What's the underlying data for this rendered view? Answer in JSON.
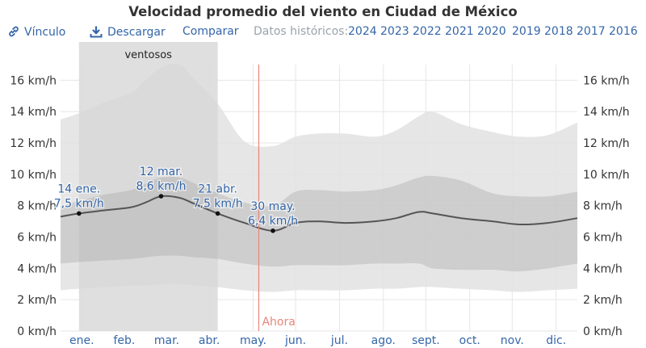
{
  "title": "Velocidad promedio del viento en Ciudad de México",
  "toolbar": {
    "link_label": "Vínculo",
    "link_icon": "link-icon",
    "download_label": "Descargar",
    "download_icon": "download-icon",
    "compare_label": "Comparar",
    "historical_label": "Datos históricos:",
    "years": [
      "2024",
      "2023",
      "2022",
      "2021",
      "2020",
      "2019",
      "2018",
      "2017",
      "2016"
    ]
  },
  "colors": {
    "link": "#3466a8",
    "now_line": "#e8857a",
    "band_outer": "#e2e2e2",
    "band_mid": "#c9c9c9",
    "band_inner": "#b3b3b3",
    "median_line": "#555555",
    "windy_shade": "#cfcfcf"
  },
  "chart_data": {
    "type": "area",
    "y_unit": "km/h",
    "ylim": [
      0,
      17
    ],
    "y_ticks": [
      {
        "value": 0,
        "label": "0 km/h"
      },
      {
        "value": 2,
        "label": "2 km/h"
      },
      {
        "value": 4,
        "label": "4 km/h"
      },
      {
        "value": 6,
        "label": "6 km/h"
      },
      {
        "value": 8,
        "label": "8 km/h"
      },
      {
        "value": 10,
        "label": "10 km/h"
      },
      {
        "value": 12,
        "label": "12 km/h"
      },
      {
        "value": 14,
        "label": "14 km/h"
      },
      {
        "value": 16,
        "label": "16 km/h"
      }
    ],
    "x_domain": [
      "2024-01-01",
      "2024-12-31"
    ],
    "months": [
      {
        "label": "ene.",
        "date": "2024-01-16"
      },
      {
        "label": "feb.",
        "date": "2024-02-15"
      },
      {
        "label": "mar.",
        "date": "2024-03-16"
      },
      {
        "label": "abr.",
        "date": "2024-04-15"
      },
      {
        "label": "may.",
        "date": "2024-05-16"
      },
      {
        "label": "jun.",
        "date": "2024-06-15"
      },
      {
        "label": "jul.",
        "date": "2024-07-16"
      },
      {
        "label": "ago.",
        "date": "2024-08-16"
      },
      {
        "label": "sept.",
        "date": "2024-09-15"
      },
      {
        "label": "oct.",
        "date": "2024-10-16"
      },
      {
        "label": "nov.",
        "date": "2024-11-15"
      },
      {
        "label": "dic.",
        "date": "2024-12-16"
      }
    ],
    "windy_season": {
      "label": "ventosos",
      "start": "2024-01-14",
      "end": "2024-04-21"
    },
    "now": {
      "label": "Ahora",
      "date": "2024-05-20"
    },
    "x": [
      "2024-01-01",
      "2024-01-14",
      "2024-02-01",
      "2024-02-20",
      "2024-03-01",
      "2024-03-12",
      "2024-03-25",
      "2024-04-05",
      "2024-04-21",
      "2024-05-10",
      "2024-05-30",
      "2024-06-15",
      "2024-07-01",
      "2024-07-20",
      "2024-08-10",
      "2024-08-25",
      "2024-09-10",
      "2024-09-20",
      "2024-10-10",
      "2024-11-01",
      "2024-11-20",
      "2024-12-10",
      "2024-12-31"
    ],
    "series": [
      {
        "name": "",
        "role": "p10",
        "values": [
          2.6,
          2.7,
          2.8,
          2.9,
          2.9,
          3.0,
          3.0,
          2.9,
          2.8,
          2.6,
          2.5,
          2.6,
          2.6,
          2.6,
          2.7,
          2.7,
          2.8,
          2.8,
          2.7,
          2.6,
          2.5,
          2.6,
          2.7
        ]
      },
      {
        "name": "",
        "role": "p25",
        "values": [
          4.3,
          4.4,
          4.5,
          4.6,
          4.7,
          4.8,
          4.8,
          4.7,
          4.6,
          4.3,
          4.1,
          4.2,
          4.2,
          4.2,
          4.3,
          4.3,
          4.3,
          4.0,
          3.9,
          3.9,
          3.8,
          4.0,
          4.3
        ]
      },
      {
        "name": "",
        "role": "median",
        "values": [
          7.3,
          7.5,
          7.7,
          7.9,
          8.2,
          8.6,
          8.5,
          8.1,
          7.5,
          6.9,
          6.4,
          6.9,
          7.0,
          6.9,
          7.0,
          7.2,
          7.6,
          7.5,
          7.2,
          7.0,
          6.8,
          6.9,
          7.2
        ]
      },
      {
        "name": "",
        "role": "p75",
        "values": [
          8.0,
          8.3,
          8.7,
          9.0,
          9.4,
          9.8,
          9.8,
          9.4,
          8.8,
          8.2,
          8.0,
          8.9,
          9.0,
          8.9,
          9.0,
          9.3,
          9.8,
          9.9,
          9.6,
          8.8,
          8.6,
          8.6,
          8.9
        ]
      },
      {
        "name": "",
        "role": "p90",
        "values": [
          13.5,
          13.9,
          14.6,
          15.2,
          16.0,
          16.8,
          17.0,
          16.0,
          14.5,
          12.1,
          11.8,
          12.4,
          12.6,
          12.6,
          12.4,
          12.8,
          13.7,
          14.0,
          13.2,
          12.7,
          12.4,
          12.5,
          13.3
        ]
      }
    ],
    "annotations": [
      {
        "date": "2024-01-14",
        "label": [
          "14 ene.",
          "7,5 km/h"
        ],
        "value": 7.5
      },
      {
        "date": "2024-03-12",
        "label": [
          "12 mar.",
          "8,6 km/h"
        ],
        "value": 8.6
      },
      {
        "date": "2024-04-21",
        "label": [
          "21 abr.",
          "7,5 km/h"
        ],
        "value": 7.5
      },
      {
        "date": "2024-05-30",
        "label": [
          "30 may.",
          "6,4 km/h"
        ],
        "value": 6.4
      }
    ]
  }
}
